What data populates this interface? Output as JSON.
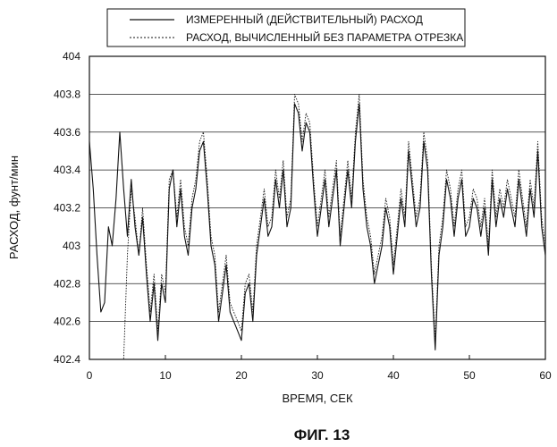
{
  "chart_data": {
    "type": "line",
    "title": "",
    "caption": "ФИГ. 13",
    "xlabel": "ВРЕМЯ, СЕК",
    "ylabel": "РАСХОД, фунт/мин",
    "xlim": [
      0,
      60
    ],
    "ylim": [
      402.4,
      404
    ],
    "xticks": [
      "0",
      "10",
      "20",
      "30",
      "40",
      "50",
      "60"
    ],
    "yticks": [
      "402.4",
      "402.6",
      "402.8",
      "403",
      "403.2",
      "403.4",
      "403.6",
      "403.8",
      "404"
    ],
    "grid": "horizontal",
    "legend_position": "top",
    "series": [
      {
        "name": "ИЗМЕРЕННЫЙ (ДЕЙСТВИТЕЛЬНЫЙ) РАСХОД",
        "style": "solid",
        "x": [
          0,
          0.5,
          1,
          1.5,
          2,
          2.5,
          3,
          3.5,
          4,
          4.5,
          5,
          5.5,
          6,
          6.5,
          7,
          7.5,
          8,
          8.5,
          9,
          9.5,
          10,
          10.5,
          11,
          11.5,
          12,
          12.5,
          13,
          13.5,
          14,
          14.5,
          15,
          15.5,
          16,
          16.5,
          17,
          17.5,
          18,
          18.5,
          19,
          19.5,
          20,
          20.5,
          21,
          21.5,
          22,
          22.5,
          23,
          23.5,
          24,
          24.5,
          25,
          25.5,
          26,
          26.5,
          27,
          27.5,
          28,
          28.5,
          29,
          29.5,
          30,
          30.5,
          31,
          31.5,
          32,
          32.5,
          33,
          33.5,
          34,
          34.5,
          35,
          35.5,
          36,
          36.5,
          37,
          37.5,
          38,
          38.5,
          39,
          39.5,
          40,
          40.5,
          41,
          41.5,
          42,
          42.5,
          43,
          43.5,
          44,
          44.5,
          45,
          45.5,
          46,
          46.5,
          47,
          47.5,
          48,
          48.5,
          49,
          49.5,
          50,
          50.5,
          51,
          51.5,
          52,
          52.5,
          53,
          53.5,
          54,
          54.5,
          55,
          55.5,
          56,
          56.5,
          57,
          57.5,
          58,
          58.5,
          59,
          59.5,
          60
        ],
        "values": [
          403.55,
          403.3,
          402.95,
          402.65,
          402.7,
          403.1,
          403.0,
          403.25,
          403.6,
          403.3,
          403.05,
          403.35,
          403.1,
          402.95,
          403.15,
          402.85,
          402.6,
          402.8,
          402.5,
          402.8,
          402.7,
          403.3,
          403.4,
          403.1,
          403.3,
          403.05,
          402.95,
          403.2,
          403.3,
          403.5,
          403.55,
          403.3,
          403.0,
          402.9,
          402.6,
          402.75,
          402.9,
          402.65,
          402.6,
          402.55,
          402.5,
          402.75,
          402.8,
          402.6,
          402.95,
          403.1,
          403.25,
          403.05,
          403.1,
          403.35,
          403.2,
          403.4,
          403.1,
          403.2,
          403.75,
          403.7,
          403.5,
          403.65,
          403.6,
          403.3,
          403.05,
          403.2,
          403.35,
          403.1,
          403.25,
          403.4,
          403.0,
          403.2,
          403.4,
          403.2,
          403.55,
          403.75,
          403.3,
          403.1,
          403.0,
          402.8,
          402.9,
          403.0,
          403.2,
          403.1,
          402.85,
          403.05,
          403.25,
          403.1,
          403.5,
          403.3,
          403.1,
          403.2,
          403.55,
          403.4,
          402.85,
          402.45,
          402.95,
          403.1,
          403.35,
          403.25,
          403.05,
          403.25,
          403.35,
          403.05,
          403.1,
          403.25,
          403.2,
          403.05,
          403.2,
          402.95,
          403.35,
          403.1,
          403.25,
          403.15,
          403.3,
          403.2,
          403.1,
          403.35,
          403.2,
          403.05,
          403.3,
          403.15,
          403.5,
          403.1,
          402.95
        ]
      },
      {
        "name": "РАСХОД, ВЫЧИСЛЕННЫЙ БЕЗ ПАРАМЕТРА ОТРЕЗКА",
        "style": "dotted",
        "x": [
          0,
          0.5,
          1,
          1.5,
          2,
          2.5,
          3,
          3.5,
          4,
          4.5,
          5,
          5.5,
          6,
          6.5,
          7,
          7.5,
          8,
          8.5,
          9,
          9.5,
          10,
          10.5,
          11,
          11.5,
          12,
          12.5,
          13,
          13.5,
          14,
          14.5,
          15,
          15.5,
          16,
          16.5,
          17,
          17.5,
          18,
          18.5,
          19,
          19.5,
          20,
          20.5,
          21,
          21.5,
          22,
          22.5,
          23,
          23.5,
          24,
          24.5,
          25,
          25.5,
          26,
          26.5,
          27,
          27.5,
          28,
          28.5,
          29,
          29.5,
          30,
          30.5,
          31,
          31.5,
          32,
          32.5,
          33,
          33.5,
          34,
          34.5,
          35,
          35.5,
          36,
          36.5,
          37,
          37.5,
          38,
          38.5,
          39,
          39.5,
          40,
          40.5,
          41,
          41.5,
          42,
          42.5,
          43,
          43.5,
          44,
          44.5,
          45,
          45.5,
          46,
          46.5,
          47,
          47.5,
          48,
          48.5,
          49,
          49.5,
          50,
          50.5,
          51,
          51.5,
          52,
          52.5,
          53,
          53.5,
          54,
          54.5,
          55,
          55.5,
          56,
          56.5,
          57,
          57.5,
          58,
          58.5,
          59,
          59.5,
          60
        ],
        "values": [
          402.4,
          402.4,
          402.4,
          402.4,
          402.4,
          402.4,
          402.4,
          402.4,
          402.4,
          402.4,
          402.95,
          403.3,
          403.15,
          402.95,
          403.2,
          402.9,
          402.65,
          402.85,
          402.55,
          402.85,
          402.75,
          403.35,
          403.4,
          403.15,
          403.35,
          403.1,
          403.0,
          403.25,
          403.35,
          403.55,
          403.6,
          403.35,
          403.05,
          402.95,
          402.65,
          402.8,
          402.95,
          402.7,
          402.65,
          402.6,
          402.55,
          402.8,
          402.85,
          402.65,
          403.0,
          403.15,
          403.3,
          403.1,
          403.15,
          403.4,
          403.25,
          403.45,
          403.15,
          403.25,
          403.8,
          403.75,
          403.55,
          403.7,
          403.65,
          403.35,
          403.1,
          403.25,
          403.4,
          403.15,
          403.3,
          403.45,
          403.05,
          403.25,
          403.45,
          403.25,
          403.6,
          403.8,
          403.35,
          403.15,
          403.05,
          402.85,
          402.95,
          403.05,
          403.25,
          403.15,
          402.9,
          403.1,
          403.3,
          403.15,
          403.55,
          403.35,
          403.15,
          403.25,
          403.6,
          403.45,
          402.9,
          402.5,
          403.0,
          403.15,
          403.4,
          403.3,
          403.1,
          403.3,
          403.4,
          403.1,
          403.15,
          403.3,
          403.25,
          403.1,
          403.25,
          403.0,
          403.4,
          403.15,
          403.3,
          403.2,
          403.35,
          403.25,
          403.15,
          403.4,
          403.25,
          403.1,
          403.35,
          403.2,
          403.55,
          403.15,
          403.0
        ]
      }
    ]
  }
}
